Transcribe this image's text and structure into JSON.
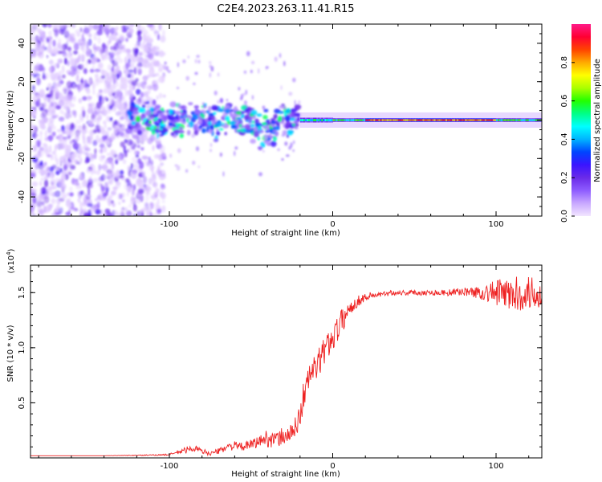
{
  "figure": {
    "title": "C2E4.2023.263.11.41.R15"
  },
  "chart_data": [
    {
      "type": "heatmap",
      "title": "C2E4.2023.263.11.41.R15",
      "xlabel": "Height of straight line (km)",
      "ylabel": "Frequency (Hz)",
      "xlim": [
        -185,
        128
      ],
      "ylim": [
        -50,
        50
      ],
      "xticks": [
        -100,
        0,
        100
      ],
      "yticks": [
        -40,
        -20,
        0,
        20,
        40
      ],
      "colorbar": {
        "label": "Normalized spectral amplitude",
        "range": [
          0,
          1
        ],
        "ticks": [
          "0.0",
          "0.2",
          "0.4",
          "0.6",
          "0.8"
        ],
        "tick_values": [
          0.0,
          0.2,
          0.4,
          0.6,
          0.8
        ],
        "colormap": [
          "#f2e6ff",
          "#c9a8ff",
          "#8e5cff",
          "#6a2be8",
          "#3a14ff",
          "#0044ff",
          "#00b4ff",
          "#00ffff",
          "#00ff88",
          "#22ff00",
          "#aaff00",
          "#ffff00",
          "#ffaa00",
          "#ff4400",
          "#ff0033",
          "#ff1a88"
        ]
      },
      "features": [
        {
          "name": "broadband noise",
          "x_range": [
            -185,
            -103
          ],
          "y_range": [
            -50,
            50
          ],
          "amplitude": 0.12
        },
        {
          "name": "scattered weak returns",
          "x_range": [
            -103,
            -20
          ],
          "y_range": [
            -30,
            35
          ],
          "amplitude": 0.08
        },
        {
          "name": "narrow carrier",
          "x_range": [
            -125,
            128
          ],
          "center_y": 0,
          "amplitude_peak": 0.9,
          "peak_x_range": [
            20,
            100
          ]
        }
      ]
    },
    {
      "type": "line",
      "xlabel": "Height of straight line (km)",
      "ylabel": "SNR (10 * v/v)",
      "y_multiplier": "(x10",
      "y_multiplier_exp": "4",
      "y_multiplier_close": ")",
      "xlim": [
        -185,
        128
      ],
      "ylim": [
        0,
        17500
      ],
      "xticks": [
        -100,
        0,
        100
      ],
      "yticks": [
        5000,
        10000,
        15000
      ],
      "ytick_labels": [
        "0.5",
        "1.0",
        "1.5"
      ],
      "color": "#ee2222",
      "series": [
        {
          "x": [
            -185,
            -170,
            -155,
            -140,
            -125,
            -110,
            -100,
            -95,
            -90,
            -85,
            -80,
            -75,
            -70,
            -65,
            -60,
            -55,
            -50,
            -45,
            -40,
            -35,
            -30,
            -25,
            -22,
            -20,
            -18,
            -16,
            -14,
            -12,
            -10,
            -8,
            -6,
            -4,
            -2,
            0,
            2,
            4,
            6,
            8,
            10,
            15,
            20,
            25,
            30,
            35,
            40,
            50,
            60,
            70,
            80,
            90,
            100,
            110,
            120,
            128
          ],
          "y": [
            200,
            200,
            200,
            200,
            220,
            250,
            300,
            500,
            700,
            900,
            600,
            400,
            600,
            1000,
            1100,
            1000,
            1200,
            1500,
            1800,
            1600,
            2000,
            2200,
            3000,
            4000,
            5500,
            6500,
            7500,
            8000,
            8200,
            8800,
            9500,
            10000,
            10500,
            11000,
            11500,
            12000,
            12500,
            13000,
            13500,
            14200,
            14600,
            14800,
            14800,
            15000,
            15000,
            15000,
            15000,
            15000,
            15100,
            15000,
            15000,
            14800,
            15000,
            14800
          ],
          "jitter": [
            0,
            0,
            0,
            0,
            30,
            50,
            80,
            200,
            300,
            300,
            250,
            200,
            250,
            350,
            400,
            350,
            450,
            600,
            800,
            700,
            900,
            900,
            1000,
            1200,
            1400,
            1400,
            1400,
            1300,
            1300,
            1300,
            1300,
            1300,
            1300,
            1300,
            1200,
            1200,
            1100,
            1000,
            900,
            500,
            400,
            300,
            250,
            250,
            250,
            250,
            250,
            300,
            350,
            600,
            1200,
            1600,
            1600,
            1400
          ]
        }
      ]
    }
  ]
}
